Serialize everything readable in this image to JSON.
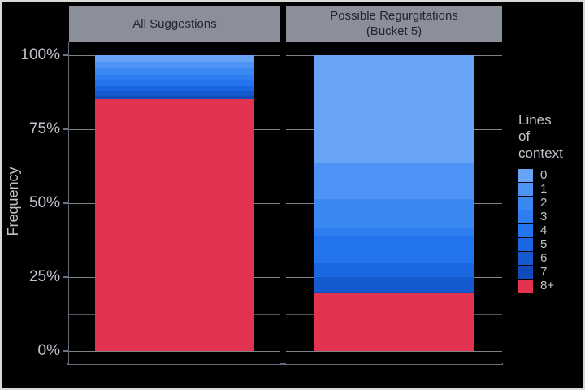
{
  "chart_data": {
    "type": "bar",
    "stacked": true,
    "orientation": "vertical",
    "unit": "percent",
    "ylabel": "Frequency",
    "ylim": [
      0,
      100
    ],
    "grid": true,
    "legend_position": "right",
    "legend_title": "Lines\nof\ncontext",
    "categories": [
      "0",
      "1",
      "2",
      "3",
      "4",
      "5",
      "6",
      "7",
      "8+"
    ],
    "colors": [
      "#68a3f7",
      "#4d93f5",
      "#3c88f3",
      "#2f7ef1",
      "#2374ee",
      "#1b67e1",
      "#1559cf",
      "#104bbb",
      "#e23450"
    ],
    "series": [
      {
        "name": "All Suggestions",
        "values": [
          2.2,
          2.2,
          2.1,
          2.0,
          2.0,
          1.7,
          1.5,
          1.2,
          85.1
        ]
      },
      {
        "name": "Possible Regurgitations\n(Bucket 5)",
        "values": [
          36.6,
          12.1,
          9.6,
          3.0,
          9.1,
          4.7,
          4.9,
          0.5,
          19.5
        ]
      }
    ],
    "y_ticks": [
      {
        "label": "100%",
        "value": 100
      },
      {
        "label": "75%",
        "value": 75
      },
      {
        "label": "50%",
        "value": 50
      },
      {
        "label": "25%",
        "value": 25
      },
      {
        "label": "0%",
        "value": 0
      }
    ],
    "y_minor": [
      87.5,
      62.5,
      37.5,
      12.5
    ]
  },
  "theme": {
    "background": "#000000",
    "frame_border": "#d9d9d9",
    "header_bg": "#8a8f9a",
    "header_text": "#22262d",
    "axis_text": "#bec3cb",
    "grid_major": "#7f848a",
    "grid_minor": "#54585e",
    "axis_line": "#646c78"
  }
}
